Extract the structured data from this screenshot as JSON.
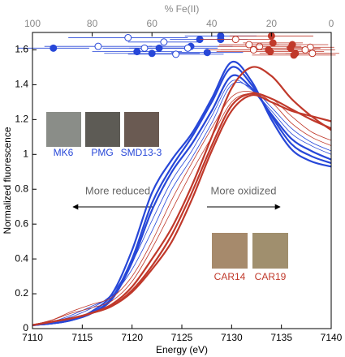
{
  "chart_data": {
    "type": "line",
    "xlabel": "Energy (eV)",
    "ylabel": "Normalized fluorescence",
    "xlim": [
      7110,
      7140
    ],
    "xticks": [
      7110,
      7115,
      7120,
      7125,
      7130,
      7135,
      7140
    ],
    "ylim": [
      0,
      1.7
    ],
    "yticks": [
      0,
      0.2,
      0.4,
      0.6,
      0.8,
      1,
      1.2,
      1.4,
      1.6
    ],
    "top_axis": {
      "label": "% Fe(II)",
      "xlim": [
        100,
        0
      ],
      "xticks": [
        100,
        80,
        60,
        40,
        20,
        0
      ],
      "color": "#888888"
    },
    "x": [
      7110,
      7112,
      7114,
      7116,
      7118,
      7120,
      7122,
      7124,
      7126,
      7128,
      7130,
      7132,
      7134,
      7136,
      7138,
      7140
    ],
    "series": [
      {
        "color": "#2747d8",
        "width": 2.2,
        "values": [
          0.02,
          0.03,
          0.05,
          0.1,
          0.2,
          0.45,
          0.78,
          0.97,
          1.12,
          1.32,
          1.53,
          1.42,
          1.2,
          1.03,
          0.96,
          0.93
        ]
      },
      {
        "color": "#2747d8",
        "width": 2.2,
        "values": [
          0.02,
          0.03,
          0.05,
          0.09,
          0.18,
          0.4,
          0.72,
          0.93,
          1.1,
          1.3,
          1.5,
          1.4,
          1.22,
          1.06,
          0.99,
          0.95
        ]
      },
      {
        "color": "#2747d8",
        "width": 2.2,
        "values": [
          0.02,
          0.03,
          0.05,
          0.09,
          0.17,
          0.38,
          0.68,
          0.9,
          1.06,
          1.25,
          1.45,
          1.38,
          1.23,
          1.09,
          1.02,
          0.97
        ]
      },
      {
        "color": "#2747d8",
        "width": 0.8,
        "values": [
          0.02,
          0.04,
          0.07,
          0.12,
          0.2,
          0.38,
          0.62,
          0.85,
          1.02,
          1.22,
          1.42,
          1.37,
          1.25,
          1.12,
          1.05,
          1.0
        ]
      },
      {
        "color": "#2747d8",
        "width": 0.8,
        "values": [
          0.02,
          0.04,
          0.08,
          0.13,
          0.19,
          0.34,
          0.56,
          0.8,
          0.98,
          1.18,
          1.4,
          1.38,
          1.27,
          1.15,
          1.07,
          1.02
        ]
      },
      {
        "color": "#c0392b",
        "width": 0.8,
        "values": [
          0.02,
          0.05,
          0.1,
          0.14,
          0.18,
          0.3,
          0.5,
          0.74,
          0.95,
          1.15,
          1.33,
          1.36,
          1.3,
          1.18,
          1.1,
          1.05
        ]
      },
      {
        "color": "#c0392b",
        "width": 0.8,
        "values": [
          0.02,
          0.05,
          0.09,
          0.12,
          0.16,
          0.27,
          0.46,
          0.68,
          0.9,
          1.1,
          1.3,
          1.35,
          1.32,
          1.22,
          1.13,
          1.08
        ]
      },
      {
        "color": "#c0392b",
        "width": 2.2,
        "values": [
          0.02,
          0.04,
          0.06,
          0.09,
          0.14,
          0.24,
          0.4,
          0.58,
          0.82,
          1.1,
          1.38,
          1.5,
          1.45,
          1.32,
          1.22,
          1.14
        ]
      },
      {
        "color": "#c0392b",
        "width": 2.2,
        "values": [
          0.02,
          0.04,
          0.06,
          0.09,
          0.13,
          0.22,
          0.36,
          0.54,
          0.78,
          1.05,
          1.28,
          1.35,
          1.32,
          1.26,
          1.2,
          1.15
        ]
      },
      {
        "color": "#c0392b",
        "width": 2.2,
        "values": [
          0.02,
          0.04,
          0.06,
          0.09,
          0.13,
          0.21,
          0.34,
          0.5,
          0.74,
          1.02,
          1.25,
          1.34,
          1.3,
          1.25,
          1.22,
          1.19
        ]
      }
    ],
    "points": [
      {
        "color": "#2747d8",
        "filled": true,
        "x": [
          93,
          65,
          57.6,
          47,
          44,
          37,
          37,
          60,
          41.5
        ],
        "y": [
          1.61,
          1.59,
          1.61,
          1.62,
          1.66,
          1.68,
          1.66,
          1.58,
          1.585
        ],
        "xerr": [
          12,
          15,
          10,
          14,
          10,
          12,
          9,
          16,
          12
        ]
      },
      {
        "color": "#2747d8",
        "filled": false,
        "x": [
          68,
          78,
          56,
          62.5,
          52,
          48
        ],
        "y": [
          1.67,
          1.62,
          1.645,
          1.61,
          1.575,
          1.61
        ],
        "xerr": [
          20,
          18,
          12,
          14,
          16,
          10
        ]
      },
      {
        "color": "#c0392b",
        "filled": true,
        "x": [
          20,
          19.5,
          13,
          21,
          13.6,
          20.4,
          12.5,
          12
        ],
        "y": [
          1.68,
          1.64,
          1.63,
          1.6,
          1.61,
          1.59,
          1.57,
          1.58
        ],
        "xerr": [
          14,
          10,
          12,
          16,
          10,
          18,
          14,
          12
        ]
      },
      {
        "color": "#c0392b",
        "filled": false,
        "x": [
          32,
          24,
          27.5,
          7,
          8.7,
          6.3,
          26
        ],
        "y": [
          1.66,
          1.62,
          1.63,
          1.615,
          1.6,
          1.58,
          1.6
        ],
        "xerr": [
          12,
          14,
          10,
          8,
          10,
          9,
          15
        ]
      }
    ],
    "annotations": [
      "More reduced",
      "More oxidized"
    ],
    "insets": [
      {
        "label": "MK6",
        "color": "#2747d8"
      },
      {
        "label": "PMG",
        "color": "#2747d8"
      },
      {
        "label": "SMD13-3",
        "color": "#2747d8"
      },
      {
        "label": "CAR14",
        "color": "#c0392b"
      },
      {
        "label": "CAR19",
        "color": "#c0392b"
      }
    ]
  }
}
